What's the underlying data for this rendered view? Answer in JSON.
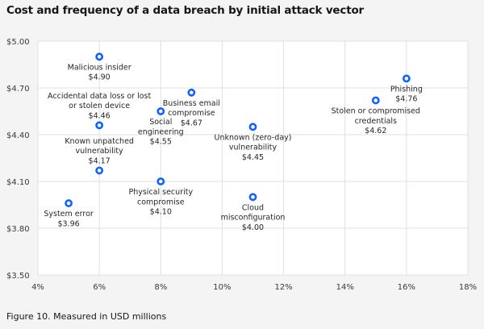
{
  "chart_data": {
    "type": "scatter",
    "title": "Cost and frequency of a data breach by initial attack vector",
    "caption": "Figure 10. Measured in USD millions",
    "xlabel": "",
    "ylabel": "",
    "xlim": [
      4,
      18
    ],
    "ylim": [
      3.5,
      5.0
    ],
    "x_ticks": [
      4,
      6,
      8,
      10,
      12,
      14,
      16,
      18
    ],
    "x_tick_labels": [
      "4%",
      "6%",
      "8%",
      "10%",
      "12%",
      "14%",
      "16%",
      "18%"
    ],
    "y_ticks": [
      3.5,
      3.8,
      4.1,
      4.4,
      4.7,
      5.0
    ],
    "y_tick_labels": [
      "$3.50",
      "$3.80",
      "$4.10",
      "$4.40",
      "$4.70",
      "$5.00"
    ],
    "grid": true,
    "marker_color": "#0f62fe",
    "points": [
      {
        "name": "Malicious insider",
        "lines": [
          "Malicious insider"
        ],
        "x": 6,
        "y": 4.9,
        "value_label": "$4.90",
        "label_pos": "below"
      },
      {
        "name": "Accidental data loss or lost or stolen device",
        "lines": [
          "Accidental data loss or lost",
          "or stolen device"
        ],
        "x": 6,
        "y": 4.46,
        "value_label": "$4.46",
        "label_pos": "above"
      },
      {
        "name": "Known unpatched vulnerability",
        "lines": [
          "Known unpatched",
          "vulnerability"
        ],
        "x": 6,
        "y": 4.17,
        "value_label": "$4.17",
        "label_pos": "above"
      },
      {
        "name": "System error",
        "lines": [
          "System error"
        ],
        "x": 5,
        "y": 3.96,
        "value_label": "$3.96",
        "label_pos": "below"
      },
      {
        "name": "Social engineering",
        "lines": [
          "Social",
          "engineering"
        ],
        "x": 8,
        "y": 4.55,
        "value_label": "$4.55",
        "label_pos": "below"
      },
      {
        "name": "Physical security compromise",
        "lines": [
          "Physical security",
          "compromise"
        ],
        "x": 8,
        "y": 4.1,
        "value_label": "$4.10",
        "label_pos": "below"
      },
      {
        "name": "Business email compromise",
        "lines": [
          "Business email",
          "compromise"
        ],
        "x": 9,
        "y": 4.67,
        "value_label": "$4.67",
        "label_pos": "below"
      },
      {
        "name": "Unknown (zero-day) vulnerability",
        "lines": [
          "Unknown (zero-day)",
          "vulnerability"
        ],
        "x": 11,
        "y": 4.45,
        "value_label": "$4.45",
        "label_pos": "below"
      },
      {
        "name": "Cloud misconfiguration",
        "lines": [
          "Cloud",
          "misconfiguration"
        ],
        "x": 11,
        "y": 4.0,
        "value_label": "$4.00",
        "label_pos": "below"
      },
      {
        "name": "Stolen or compromised credentials",
        "lines": [
          "Stolen or compromised",
          "credentials"
        ],
        "x": 15,
        "y": 4.62,
        "value_label": "$4.62",
        "label_pos": "below"
      },
      {
        "name": "Phishing",
        "lines": [
          "Phishing"
        ],
        "x": 16,
        "y": 4.76,
        "value_label": "$4.76",
        "label_pos": "below"
      }
    ]
  }
}
